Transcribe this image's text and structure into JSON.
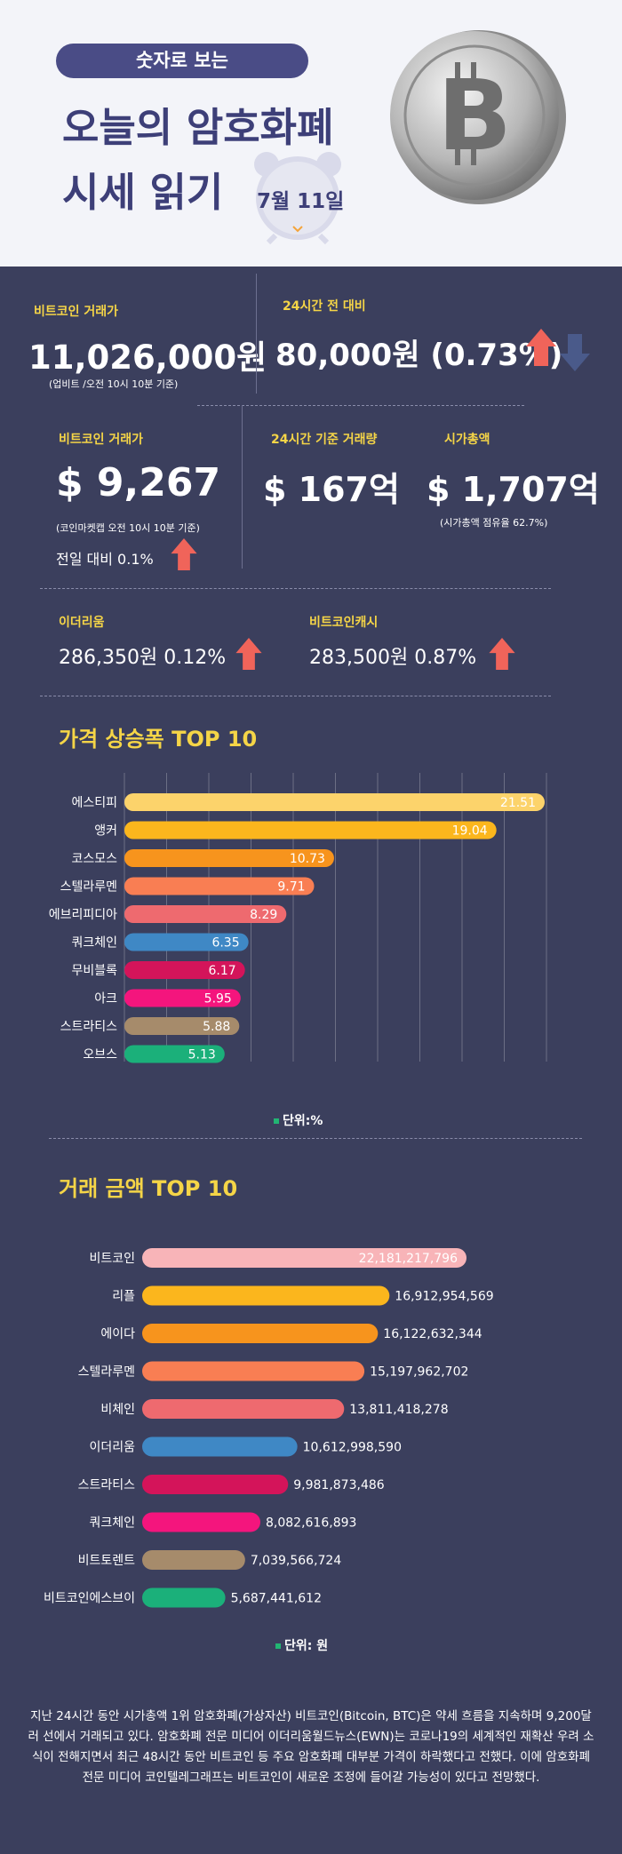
{
  "header": {
    "pill": "숫자로 보는",
    "title_line1": "오늘의 암호화폐",
    "title_line2": "시세 읽기",
    "date": "7월 11일"
  },
  "upbit": {
    "label": "비트코인 거래가",
    "price": "11,026,000원",
    "note": "(업비트 /오전 10시 10분 기준)"
  },
  "change24": {
    "label": "24시간 전 대비",
    "value": "80,000원 (0.73%)"
  },
  "coinmarketcap": {
    "label": "비트코인 거래가",
    "price": "$ 9,267",
    "note": "(코인마켓캡 오전 10시 10분 기준)",
    "prev_day": "전일 대비 0.1%"
  },
  "volume": {
    "label": "24시간 기준 거래량",
    "value": "$ 167억"
  },
  "marketcap": {
    "label": "시가총액",
    "value": "$ 1,707억",
    "note": "(시가총액 점유율 62.7%)"
  },
  "ethereum": {
    "label": "이더리움",
    "value": "286,350원  0.12%"
  },
  "bitcoincash": {
    "label": "비트코인캐시",
    "value": "283,500원  0.87%"
  },
  "sections": {
    "rise_title": "가격 상승폭 TOP 10",
    "rise_unit": "단위:%",
    "volume_title": "거래 금액 TOP 10",
    "volume_unit": "단위: 원"
  },
  "chart_data": [
    {
      "type": "bar",
      "title": "가격 상승폭 TOP 10",
      "categories": [
        "에스티피",
        "앵커",
        "코스모스",
        "스텔라루멘",
        "에브리피디아",
        "쿼크체인",
        "무비블록",
        "아크",
        "스트라티스",
        "오브스"
      ],
      "values": [
        21.51,
        19.04,
        10.73,
        9.71,
        8.29,
        6.35,
        6.17,
        5.95,
        5.88,
        5.13
      ],
      "labels": [
        "21.51",
        "19.04",
        "10.73",
        "9.71",
        "8.29",
        "6.35",
        "6.17",
        "5.95",
        "5.88",
        "5.13"
      ],
      "colors": [
        "#fcd36b",
        "#fbb61d",
        "#f7941d",
        "#f97e53",
        "#ee6a6f",
        "#3f88c5",
        "#d4145a",
        "#f4157d",
        "#a68b6b",
        "#1bb07a"
      ],
      "unit": "단위:%",
      "grid": true
    },
    {
      "type": "bar",
      "title": "거래 금액 TOP 10",
      "categories": [
        "비트코인",
        "리플",
        "에이다",
        "스텔라루멘",
        "비체인",
        "이더리움",
        "스트라티스",
        "쿼크체인",
        "비트토렌트",
        "비트코인에스브이"
      ],
      "values": [
        22181217796,
        16912954569,
        16122632344,
        15197962702,
        13811418278,
        10612998590,
        9981873486,
        8082616893,
        7039566724,
        5687441612
      ],
      "labels": [
        "22,181,217,796",
        "16,912,954,569",
        "16,122,632,344",
        "15,197,962,702",
        "13,811,418,278",
        "10,612,998,590",
        "9,981,873,486",
        "8,082,616,893",
        "7,039,566,724",
        "5,687,441,612"
      ],
      "colors": [
        "#f8b4b8",
        "#fbb61d",
        "#f7941d",
        "#f97e53",
        "#ee6a6f",
        "#3f88c5",
        "#d4145a",
        "#f4157d",
        "#a68b6b",
        "#1bb07a"
      ],
      "unit": "단위: 원",
      "grid": false
    }
  ],
  "paragraph": "지난 24시간 동안 시가총액 1위 암호화폐(가상자산) 비트코인(Bitcoin, BTC)은 약세 흐름을 지속하며 9,200달러 선에서 거래되고 있다. 암호화폐 전문 미디어 이더리움월드뉴스(EWN)는 코로나19의 세계적인 재확산 우려 소식이 전해지면서 최근 48시간 동안 비트코인 등 주요 암호화폐 대부분 가격이 하락했다고 전했다. 이에 암호화폐 전문 미디어 코인텔레그래프는 비트코인이 새로운 조정에 들어갈 가능성이 있다고 전망했다.",
  "colors": {
    "background": "#3b3f5d",
    "accent_yellow": "#f5d547",
    "up_arrow": "#f0645a",
    "down_arrow": "#4a5a8a"
  }
}
